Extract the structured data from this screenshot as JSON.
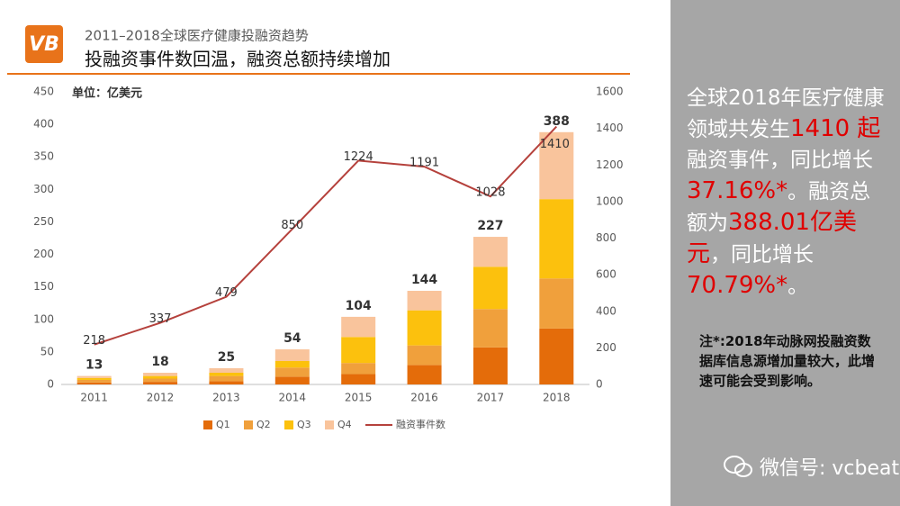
{
  "header": {
    "subtitle": "2011–2018全球医疗健康投融资趋势",
    "title": "投融资事件数回温，融资总额持续增加",
    "logo": "VB"
  },
  "chart_data": {
    "type": "bar",
    "stacked": true,
    "unit": "单位：亿美元",
    "categories": [
      "2011",
      "2012",
      "2013",
      "2014",
      "2015",
      "2016",
      "2017",
      "2018"
    ],
    "series": [
      {
        "name": "Q1",
        "color": "#e46c0a",
        "values": [
          3,
          4,
          5,
          12,
          16,
          30,
          57,
          86
        ]
      },
      {
        "name": "Q2",
        "color": "#f0a03c",
        "values": [
          4,
          5,
          8,
          14,
          17,
          30,
          59,
          77
        ]
      },
      {
        "name": "Q3",
        "color": "#fcc10d",
        "values": [
          3,
          4,
          5,
          10,
          40,
          54,
          65,
          122
        ]
      },
      {
        "name": "Q4",
        "color": "#f9c49c",
        "values": [
          3,
          5,
          7,
          18,
          31,
          30,
          46,
          103
        ]
      },
      {
        "name": "融资事件数",
        "color": "#b5413c",
        "type": "line",
        "axis": "y2",
        "values": [
          218,
          337,
          479,
          850,
          1224,
          1191,
          1028,
          1410
        ]
      }
    ],
    "totals": [
      13,
      18,
      25,
      54,
      104,
      144,
      227,
      388
    ],
    "ylim": [
      0,
      450
    ],
    "yticks": [
      0,
      50,
      100,
      150,
      200,
      250,
      300,
      350,
      400,
      450
    ],
    "y2lim": [
      0,
      1600
    ],
    "y2ticks": [
      0,
      200,
      400,
      600,
      800,
      1000,
      1200,
      1400,
      1600
    ],
    "legend": "bottom"
  },
  "side": {
    "summary": [
      "全球2018年医疗健康领域共发生",
      "1410 起",
      "融资事件，同比增长",
      "37.16%*",
      "。融资总额为",
      "388.01亿美元",
      "，同比增长",
      "70.79%*",
      "。"
    ],
    "note": "注*:2018年动脉网投融资数据库信息源增加量较大，此增速可能会受到影响。",
    "watermark": "微信号: vcbeat"
  }
}
